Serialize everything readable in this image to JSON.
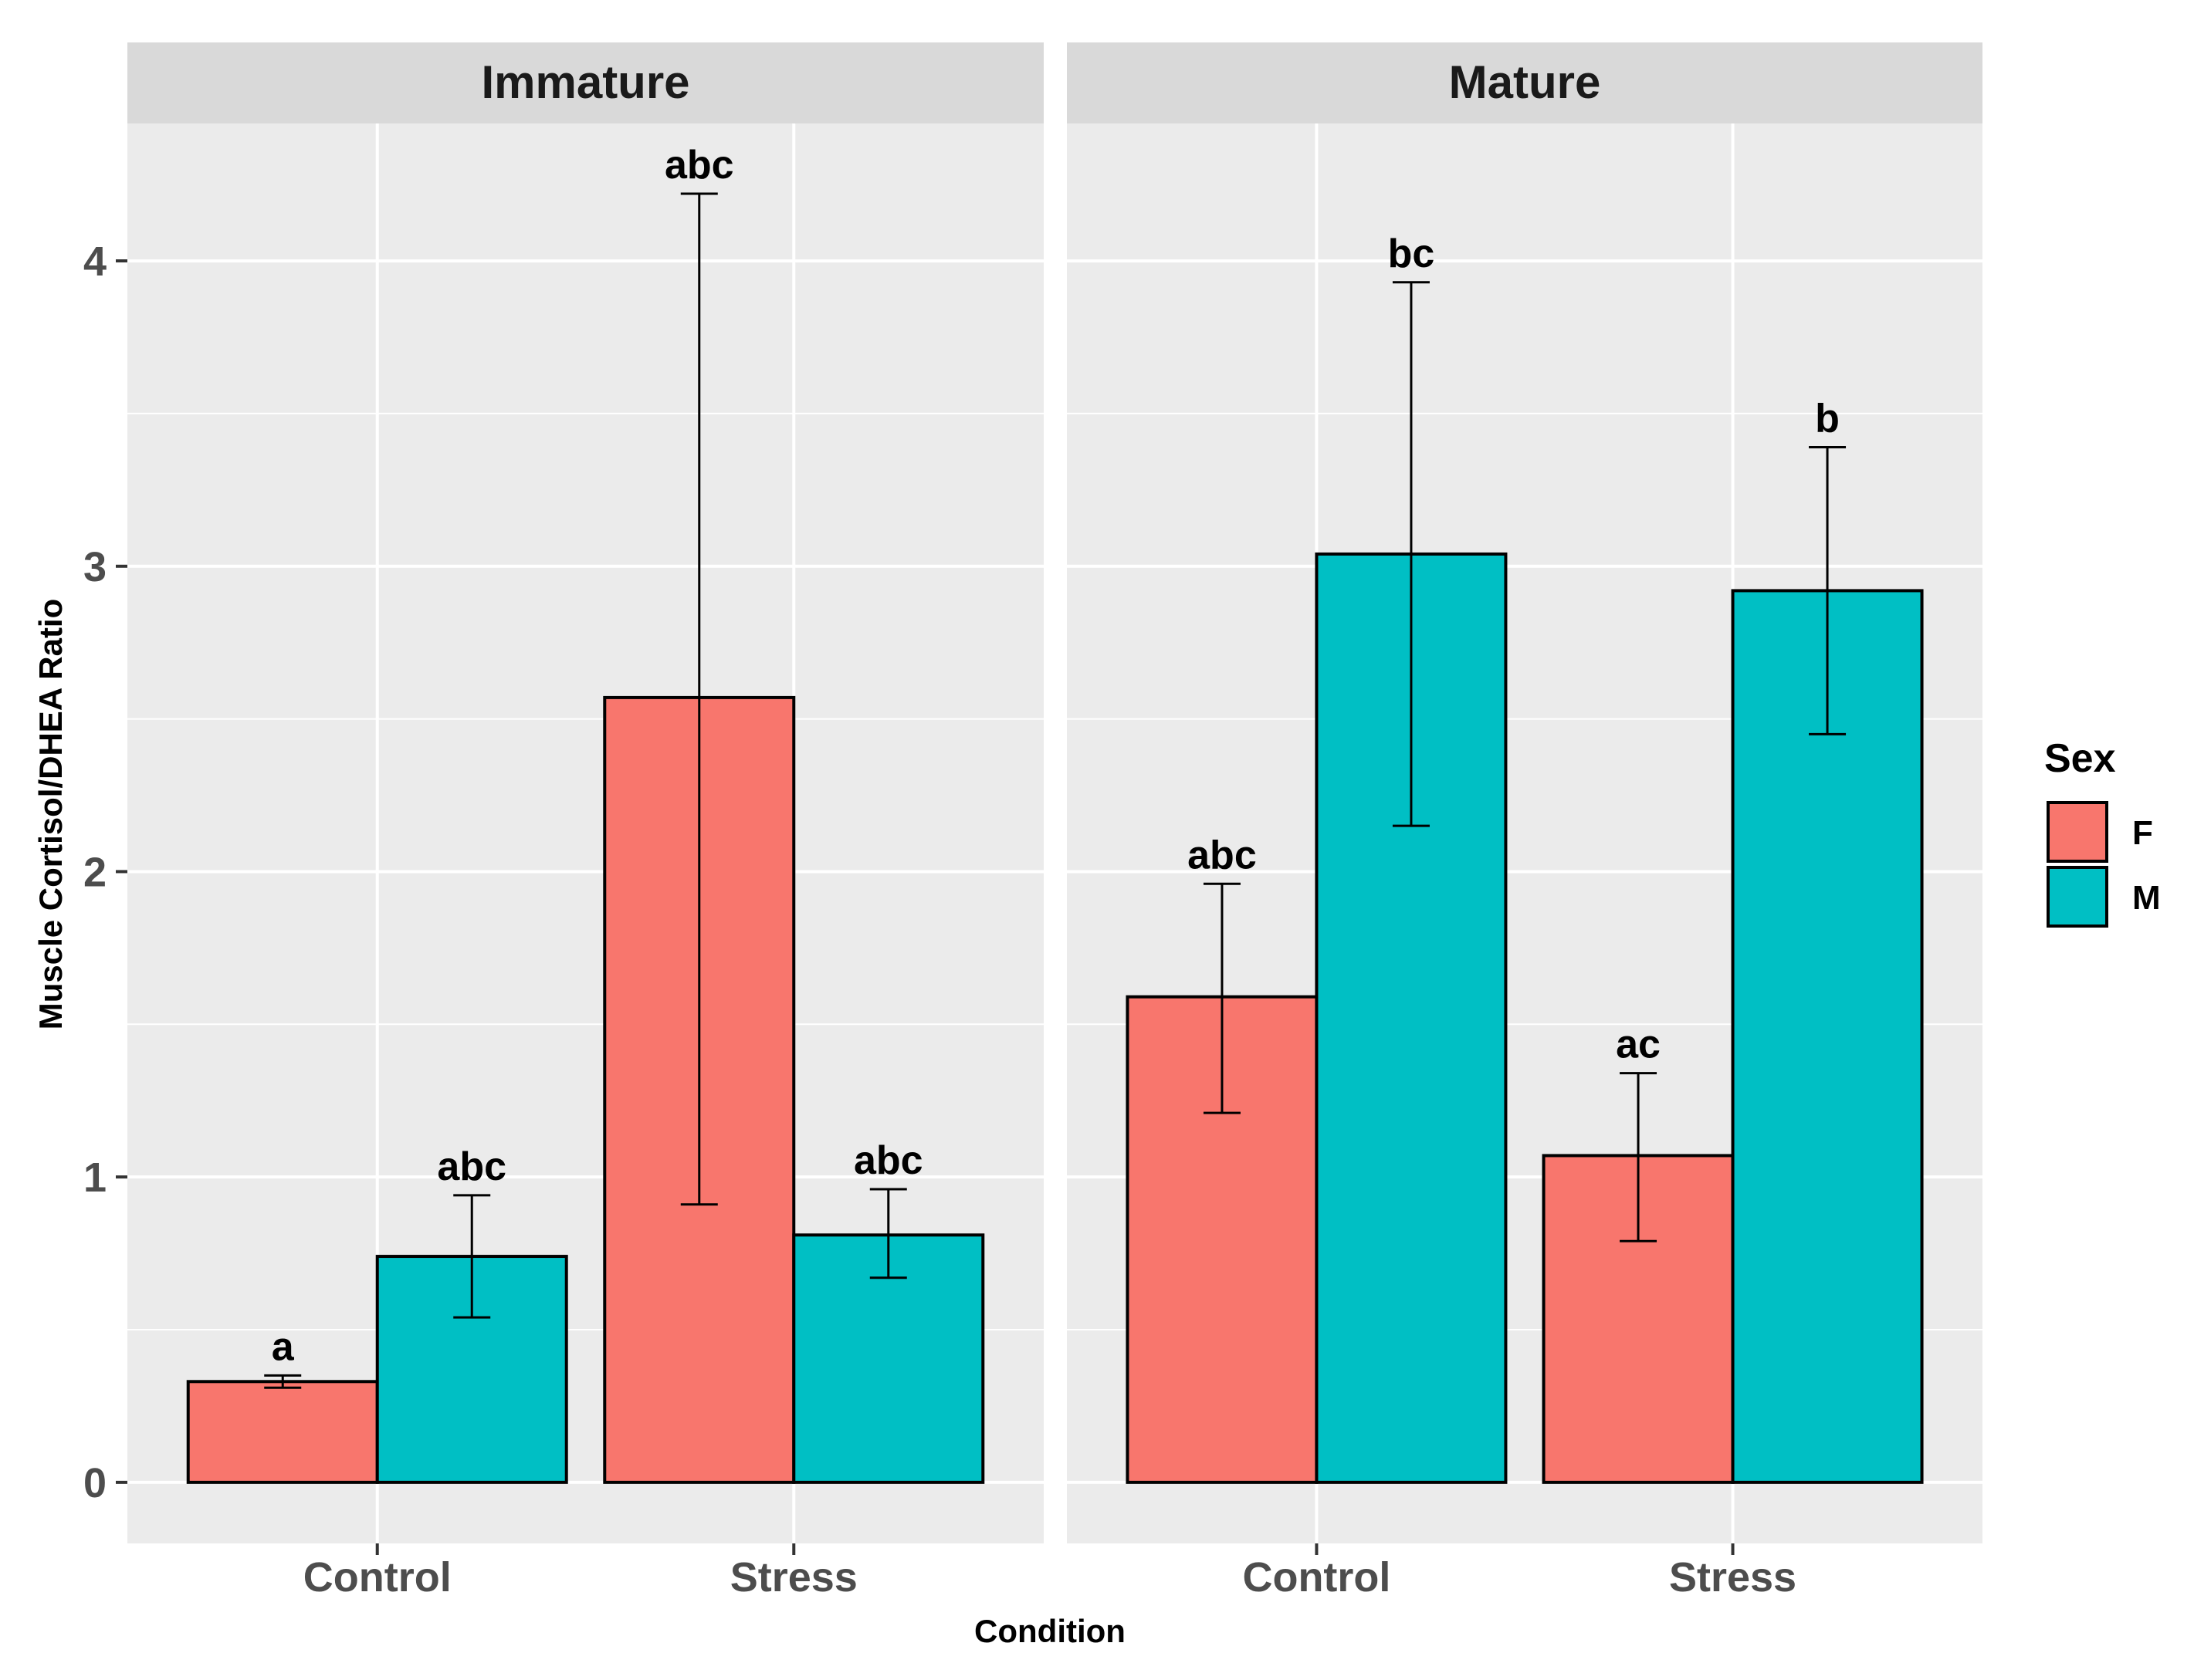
{
  "chart_data": {
    "type": "bar",
    "xlabel": "Condition",
    "ylabel": "Muscle Cortisol/DHEA Ratio",
    "ylim": [
      -0.2,
      4.45
    ],
    "yticks": [
      0,
      1,
      2,
      3,
      4
    ],
    "ytick_labels": [
      "0",
      "1",
      "2",
      "3",
      "4"
    ],
    "grid": true,
    "colors": {
      "F": "#F8766D",
      "M": "#00BFC4",
      "panel": "#EBEBEB",
      "strip": "#D9D9D9"
    },
    "legend": {
      "title": "Sex",
      "position": "right",
      "entries": [
        {
          "key": "F",
          "label": "F"
        },
        {
          "key": "M",
          "label": "M"
        }
      ]
    },
    "facets": [
      {
        "title": "Immature",
        "categories": [
          "Control",
          "Stress"
        ],
        "series": [
          {
            "name": "F",
            "values": [
              0.33,
              2.57
            ],
            "err_low": [
              0.31,
              0.91
            ],
            "err_high": [
              0.35,
              4.22
            ],
            "labels": [
              "a",
              "abc"
            ]
          },
          {
            "name": "M",
            "values": [
              0.74,
              0.81
            ],
            "err_low": [
              0.54,
              0.67
            ],
            "err_high": [
              0.94,
              0.96
            ],
            "labels": [
              "abc",
              "abc"
            ]
          }
        ]
      },
      {
        "title": "Mature",
        "categories": [
          "Control",
          "Stress"
        ],
        "series": [
          {
            "name": "F",
            "values": [
              1.59,
              1.07
            ],
            "err_low": [
              1.21,
              0.79
            ],
            "err_high": [
              1.96,
              1.34
            ],
            "labels": [
              "abc",
              "ac"
            ]
          },
          {
            "name": "M",
            "values": [
              3.04,
              2.92
            ],
            "err_low": [
              2.15,
              2.45
            ],
            "err_high": [
              3.93,
              3.39
            ],
            "labels": [
              "bc",
              "b"
            ]
          }
        ]
      }
    ]
  }
}
